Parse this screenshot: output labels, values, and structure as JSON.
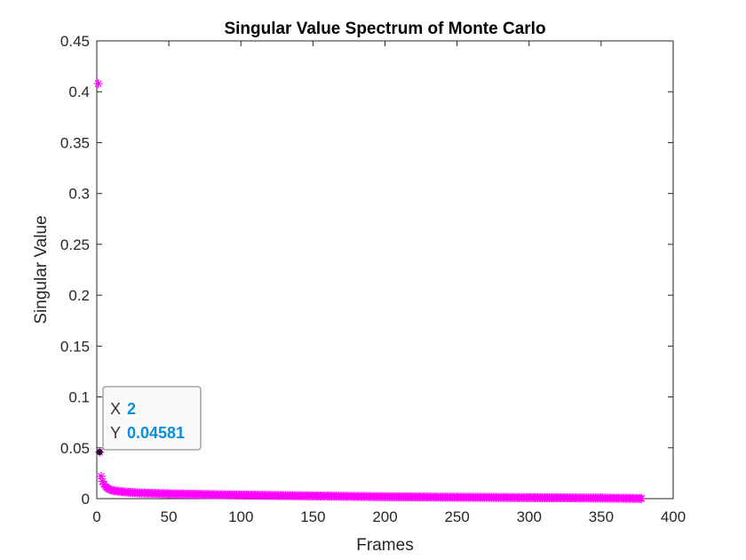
{
  "colors": {
    "marker": "#ff00ff",
    "axis": "#262626",
    "datatip_value": "#0a8ee0"
  },
  "chart_data": {
    "type": "scatter",
    "title": "Singular Value Spectrum of Monte Carlo",
    "xlabel": "Frames",
    "ylabel": "Singular Value",
    "xlim": [
      0,
      400
    ],
    "ylim": [
      0,
      0.45
    ],
    "xticks": [
      "0",
      "50",
      "100",
      "150",
      "200",
      "250",
      "300",
      "350",
      "400"
    ],
    "yticks": [
      "0",
      "0.05",
      "0.1",
      "0.15",
      "0.2",
      "0.25",
      "0.3",
      "0.35",
      "0.4",
      "0.45"
    ],
    "grid": false,
    "marker": "asterisk",
    "series": [
      {
        "x": [
          1,
          2,
          3,
          4,
          5,
          6,
          7,
          8,
          9,
          10,
          12,
          15,
          20,
          25,
          30,
          40,
          50,
          60,
          80,
          100,
          120,
          150,
          180,
          200,
          250,
          300,
          350,
          378
        ],
        "y": [
          0.408,
          0.04581,
          0.022,
          0.017,
          0.014,
          0.012,
          0.011,
          0.0098,
          0.009,
          0.0085,
          0.0078,
          0.0072,
          0.0065,
          0.006,
          0.0056,
          0.0052,
          0.0048,
          0.0045,
          0.004,
          0.0036,
          0.0032,
          0.0027,
          0.0022,
          0.0019,
          0.0014,
          0.001,
          0.0006,
          0.0002
        ]
      }
    ],
    "datatip": {
      "x_key": "X",
      "x_value": "2",
      "y_key": "Y",
      "y_value": "0.04581"
    }
  }
}
